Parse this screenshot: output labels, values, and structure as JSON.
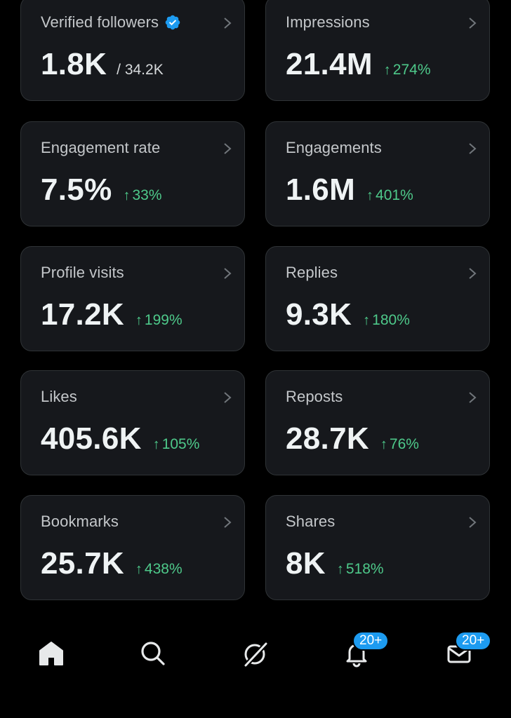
{
  "cards": [
    {
      "label": "Verified followers",
      "value": "1.8K",
      "total": "/ 34.2K",
      "verified": true
    },
    {
      "label": "Impressions",
      "value": "21.4M",
      "delta": "274%"
    },
    {
      "label": "Engagement rate",
      "value": "7.5%",
      "delta": "33%"
    },
    {
      "label": "Engagements",
      "value": "1.6M",
      "delta": "401%"
    },
    {
      "label": "Profile visits",
      "value": "17.2K",
      "delta": "199%"
    },
    {
      "label": "Replies",
      "value": "9.3K",
      "delta": "180%"
    },
    {
      "label": "Likes",
      "value": "405.6K",
      "delta": "105%"
    },
    {
      "label": "Reposts",
      "value": "28.7K",
      "delta": "76%"
    },
    {
      "label": "Bookmarks",
      "value": "25.7K",
      "delta": "438%"
    },
    {
      "label": "Shares",
      "value": "8K",
      "delta": "518%"
    }
  ],
  "arrow_symbol": "↑",
  "colors": {
    "positive": "#4ec98a",
    "accent": "#1d9bf0",
    "card_bg": "#16181c"
  },
  "nav": {
    "home_icon": "home-icon",
    "search_icon": "search-icon",
    "grok_icon": "grok-icon",
    "notifications_icon": "bell-icon",
    "notifications_badge": "20+",
    "messages_icon": "envelope-icon",
    "messages_badge": "20+"
  }
}
